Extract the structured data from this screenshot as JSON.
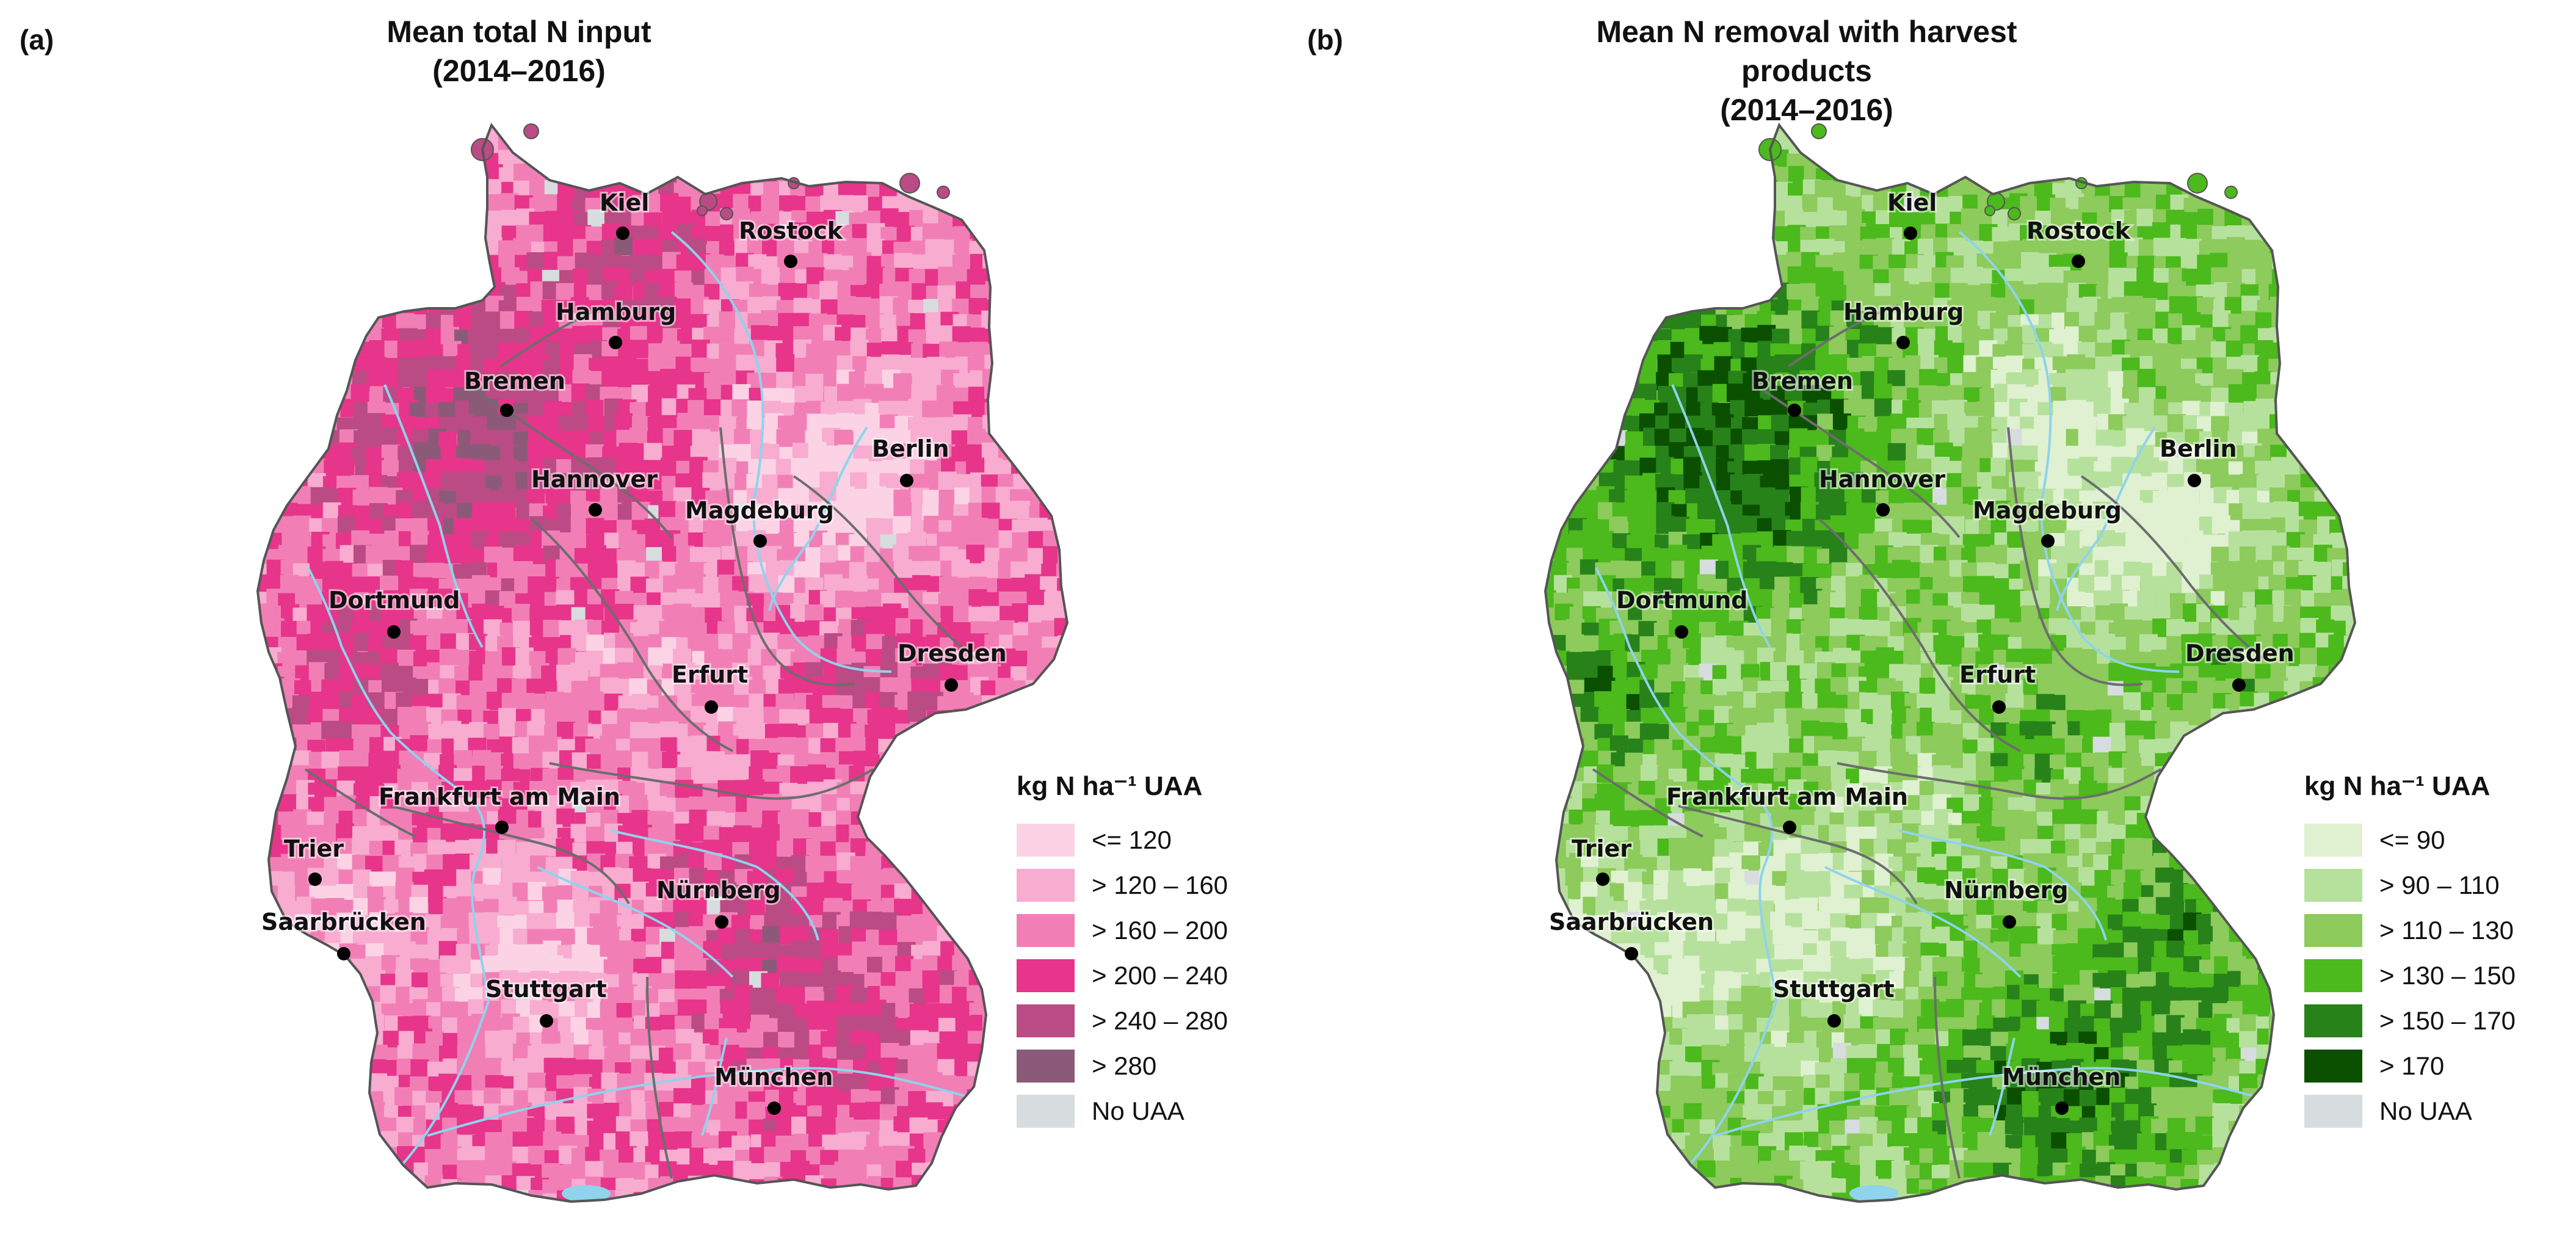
{
  "panels": [
    {
      "label": "(a)",
      "title_line1": "Mean total N input",
      "title_line2": "(2014–2016)",
      "legend_title": "kg N ha⁻¹ UAA",
      "classes": [
        {
          "label": "<= 120",
          "color": "#fbd3e5"
        },
        {
          "label": "> 120 – 160",
          "color": "#f7acd0"
        },
        {
          "label": "> 160 – 200",
          "color": "#f17fb6"
        },
        {
          "label": "> 200 – 240",
          "color": "#e6358a"
        },
        {
          "label": "> 240 – 280",
          "color": "#bb4b84"
        },
        {
          "label": "> 280",
          "color": "#8c5a79"
        },
        {
          "label": "No UAA",
          "color": "#d7dcdf"
        }
      ]
    },
    {
      "label": "(b)",
      "title_line1": "Mean N removal with harvest products",
      "title_line2": "(2014–2016)",
      "legend_title": "kg N ha⁻¹ UAA",
      "classes": [
        {
          "label": "<= 90",
          "color": "#dff1d0"
        },
        {
          "label": "> 90 – 110",
          "color": "#b6e19c"
        },
        {
          "label": "> 110 – 130",
          "color": "#8ccb5c"
        },
        {
          "label": "> 130 – 150",
          "color": "#4cb91c"
        },
        {
          "label": "> 150 – 170",
          "color": "#27821a"
        },
        {
          "label": "> 170",
          "color": "#0b5000"
        },
        {
          "label": "No UAA",
          "color": "#d7dcdf"
        }
      ]
    }
  ],
  "cities": [
    "Kiel",
    "Rostock",
    "Hamburg",
    "Bremen",
    "Berlin",
    "Hannover",
    "Magdeburg",
    "Dortmund",
    "Erfurt",
    "Dresden",
    "Frankfurt am Main",
    "Trier",
    "Nürnberg",
    "Saarbrücken",
    "Stuttgart",
    "München"
  ]
}
